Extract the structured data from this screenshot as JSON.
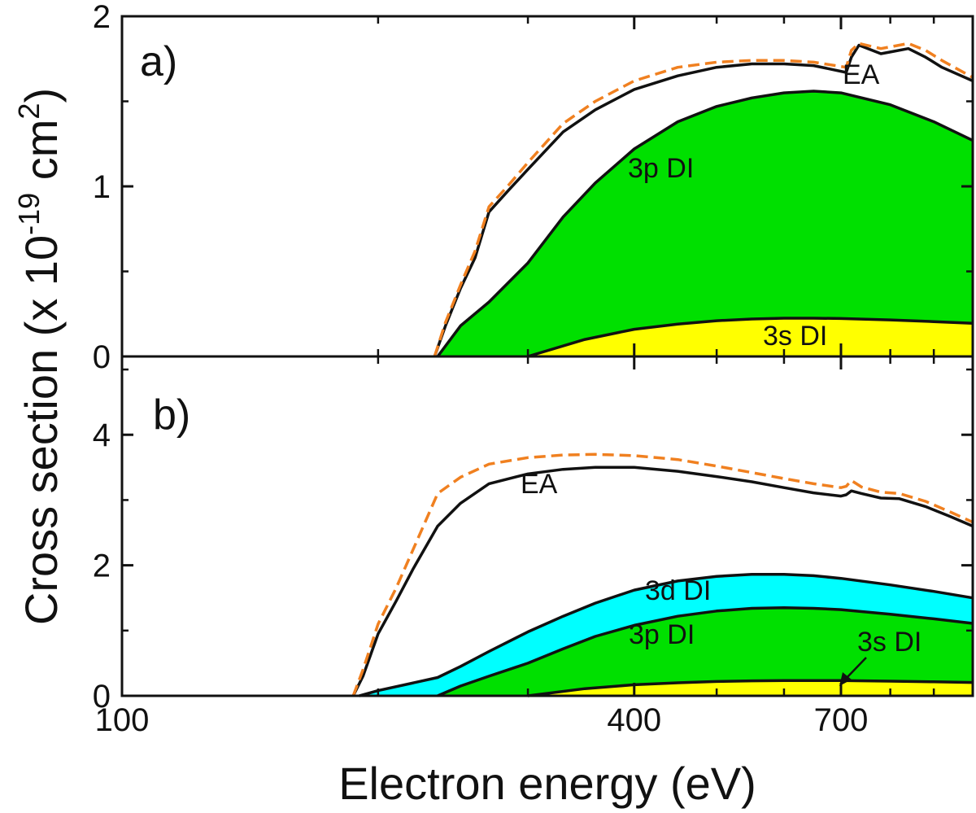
{
  "chart_data": [
    {
      "panel": "a)",
      "type": "area",
      "xscale": "log",
      "xlim": [
        100,
        1000
      ],
      "ylim": [
        0,
        2
      ],
      "yticks": [
        "0",
        "1",
        "2"
      ],
      "colors": {
        "3s DI": "#ffff00",
        "3p DI": "#00e000",
        "dashed": "#f08020"
      },
      "series": [
        {
          "name": "3s DI",
          "kind": "filled",
          "x": [
            300,
            350,
            400,
            450,
            500,
            550,
            600,
            650,
            700,
            800,
            900,
            1000
          ],
          "y": [
            0,
            0.1,
            0.16,
            0.19,
            0.21,
            0.22,
            0.225,
            0.225,
            0.223,
            0.215,
            0.205,
            0.195
          ]
        },
        {
          "name": "3p DI",
          "kind": "filled",
          "x": [
            235,
            250,
            270,
            300,
            330,
            360,
            400,
            450,
            500,
            550,
            600,
            650,
            700,
            800,
            900,
            1000
          ],
          "y": [
            0,
            0.18,
            0.32,
            0.55,
            0.82,
            1.02,
            1.22,
            1.38,
            1.47,
            1.52,
            1.55,
            1.56,
            1.55,
            1.48,
            1.38,
            1.27
          ]
        },
        {
          "name": "EA",
          "kind": "line",
          "x": [
            233,
            240,
            250,
            260,
            270,
            285,
            300,
            330,
            360,
            400,
            450,
            500,
            550,
            600,
            650,
            710,
            720,
            735,
            780,
            800,
            840,
            880,
            920,
            1000
          ],
          "y": [
            0,
            0.18,
            0.4,
            0.58,
            0.85,
            0.98,
            1.1,
            1.32,
            1.45,
            1.57,
            1.65,
            1.7,
            1.72,
            1.72,
            1.71,
            1.67,
            1.76,
            1.83,
            1.78,
            1.79,
            1.81,
            1.76,
            1.7,
            1.62
          ]
        },
        {
          "name": "EA dashed",
          "kind": "dashed",
          "x": [
            233,
            240,
            250,
            260,
            270,
            285,
            300,
            330,
            360,
            400,
            450,
            500,
            550,
            600,
            650,
            710,
            720,
            735,
            780,
            800,
            840,
            880,
            920,
            1000
          ],
          "y": [
            0,
            0.2,
            0.42,
            0.62,
            0.88,
            1.01,
            1.14,
            1.37,
            1.5,
            1.62,
            1.7,
            1.73,
            1.74,
            1.74,
            1.73,
            1.7,
            1.8,
            1.84,
            1.81,
            1.82,
            1.84,
            1.8,
            1.74,
            1.64
          ]
        }
      ],
      "labels": [
        "EA",
        "3p DI",
        "3s DI"
      ]
    },
    {
      "panel": "b)",
      "type": "area",
      "xscale": "log",
      "xlim": [
        100,
        1000
      ],
      "ylim": [
        0,
        5.2
      ],
      "yticks": [
        "0",
        "2",
        "4"
      ],
      "colors": {
        "3s DI": "#ffff00",
        "3p DI": "#00e000",
        "3d DI": "#00ffff",
        "dashed": "#f08020"
      },
      "series": [
        {
          "name": "3s DI",
          "kind": "filled",
          "x": [
            300,
            350,
            400,
            450,
            500,
            550,
            600,
            650,
            700,
            800,
            900,
            1000
          ],
          "y": [
            0,
            0.11,
            0.17,
            0.2,
            0.22,
            0.23,
            0.235,
            0.235,
            0.233,
            0.225,
            0.215,
            0.205
          ]
        },
        {
          "name": "3p DI",
          "kind": "filled",
          "x": [
            235,
            250,
            270,
            300,
            330,
            360,
            400,
            450,
            500,
            550,
            600,
            650,
            700,
            800,
            900,
            1000
          ],
          "y": [
            0,
            0.15,
            0.3,
            0.5,
            0.72,
            0.91,
            1.08,
            1.22,
            1.3,
            1.34,
            1.35,
            1.34,
            1.32,
            1.25,
            1.18,
            1.11
          ]
        },
        {
          "name": "3d DI",
          "kind": "filled",
          "x": [
            190,
            200,
            235,
            250,
            270,
            300,
            330,
            360,
            400,
            450,
            500,
            550,
            600,
            650,
            700,
            800,
            900,
            1000
          ],
          "y": [
            0,
            0.08,
            0.28,
            0.45,
            0.68,
            0.98,
            1.22,
            1.42,
            1.62,
            1.76,
            1.83,
            1.86,
            1.86,
            1.84,
            1.8,
            1.7,
            1.6,
            1.5
          ]
        },
        {
          "name": "EA",
          "kind": "line",
          "x": [
            187,
            192,
            200,
            210,
            220,
            235,
            250,
            270,
            300,
            330,
            360,
            400,
            450,
            500,
            550,
            600,
            650,
            700,
            710,
            720,
            740,
            780,
            820,
            880,
            940,
            1000
          ],
          "y": [
            0,
            0.3,
            0.95,
            1.45,
            1.95,
            2.6,
            2.95,
            3.25,
            3.4,
            3.47,
            3.5,
            3.5,
            3.44,
            3.36,
            3.28,
            3.19,
            3.11,
            3.06,
            3.08,
            3.14,
            3.1,
            3.03,
            3.02,
            2.9,
            2.75,
            2.6
          ]
        },
        {
          "name": "EA dashed",
          "kind": "dashed",
          "x": [
            187,
            192,
            200,
            210,
            220,
            235,
            250,
            270,
            300,
            330,
            360,
            400,
            450,
            500,
            550,
            600,
            650,
            700,
            710,
            720,
            740,
            780,
            820,
            880,
            940,
            1000
          ],
          "y": [
            0,
            0.4,
            1.1,
            1.65,
            2.25,
            3.1,
            3.35,
            3.55,
            3.65,
            3.69,
            3.7,
            3.68,
            3.62,
            3.52,
            3.42,
            3.33,
            3.25,
            3.19,
            3.21,
            3.3,
            3.2,
            3.12,
            3.1,
            2.98,
            2.82,
            2.66
          ]
        }
      ],
      "labels": [
        "EA",
        "3d DI",
        "3p DI",
        "3s DI"
      ]
    }
  ],
  "axes": {
    "ylabel": "Cross section (x 10",
    "ylabel_exp": "-19",
    "ylabel_unit": " cm",
    "ylabel_unit_exp": "2",
    "ylabel_close": ")",
    "xlabel": "Electron energy (eV)",
    "xticks": [
      "100",
      "400",
      "700"
    ]
  }
}
